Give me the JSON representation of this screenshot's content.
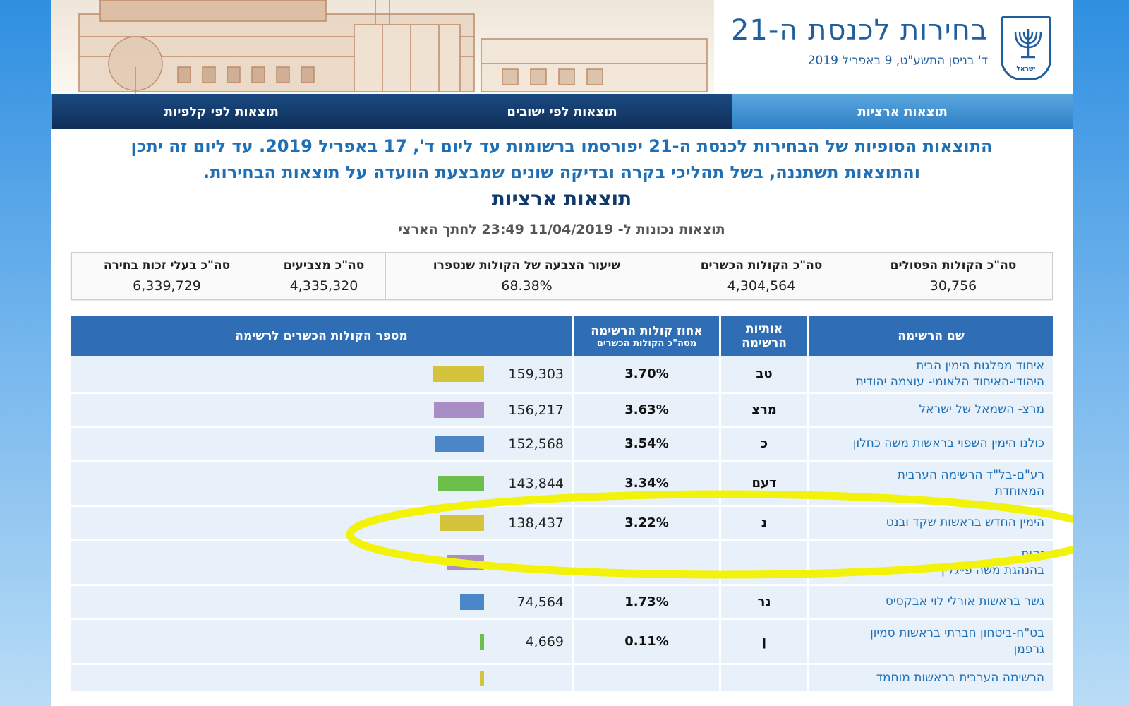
{
  "header": {
    "title": "בחירות לכנסת ה-21",
    "date": "ד' בניסן התשע\"ט, 9 באפריל 2019",
    "emblem_text": "ישראל"
  },
  "tabs": [
    {
      "label": "תוצאות ארציות",
      "active": true
    },
    {
      "label": "תוצאות לפי ישובים",
      "active": false
    },
    {
      "label": "תוצאות לפי קלפיות",
      "active": false
    }
  ],
  "notice": {
    "line1": "התוצאות הסופיות של הבחירות לכנסת ה-21 יפורסמו ברשומות עד ליום ד', 17 באפריל 2019. עד ליום זה יתכן",
    "line2": "והתוצאות תשתננה, בשל תהליכי בקרה ובדיקה שונים שמבצעת הוועדה על תוצאות הבחירות."
  },
  "section_title": "תוצאות ארציות",
  "as_of": "תוצאות נכונות ל- 11/04/2019 23:49 לחתך הארצי",
  "summary": [
    {
      "label": "סה\"כ בעלי זכות בחירה",
      "value": "6,339,729"
    },
    {
      "label": "סה\"כ מצביעים",
      "value": "4,335,320"
    },
    {
      "label": "שיעור הצבעה של הקולות שנספרו",
      "value": "68.38%"
    },
    {
      "label": "סה\"כ הקולות הכשרים",
      "value": "4,304,564"
    },
    {
      "label": "סה\"כ הקולות הפסולים",
      "value": "30,756"
    }
  ],
  "table": {
    "headers": {
      "name": "שם הרשימה",
      "letters_line1": "אותיות",
      "letters_line2": "הרשימה",
      "pct_line1": "אחוז קולות הרשימה",
      "pct_line2": "מסה\"כ הקולות הכשרים",
      "votes": "מספר הקולות הכשרים לרשימה"
    },
    "rows": [
      {
        "name_line1": "איחוד מפלגות הימין הבית",
        "name_line2": "היהודי-האיחוד הלאומי- עוצמה יהודית",
        "letters": "טב",
        "pct": "3.70%",
        "votes": "159,303",
        "bar_value": 159303,
        "bar_color": "#d4c43c"
      },
      {
        "name_line1": "מרצ- השמאל של ישראל",
        "name_line2": "",
        "letters": "מרצ",
        "pct": "3.63%",
        "votes": "156,217",
        "bar_value": 156217,
        "bar_color": "#a88ec4"
      },
      {
        "name_line1": "כולנו הימין השפוי בראשות משה כחלון",
        "name_line2": "",
        "letters": "כ",
        "pct": "3.54%",
        "votes": "152,568",
        "bar_value": 152568,
        "bar_color": "#4a86c8"
      },
      {
        "name_line1": "רע\"ם-בל\"ד הרשימה הערבית",
        "name_line2": "המאוחדת",
        "letters": "דעם",
        "pct": "3.34%",
        "votes": "143,844",
        "bar_value": 143844,
        "bar_color": "#6cbf4a"
      },
      {
        "name_line1": "הימין החדש בראשות שקד ובנט",
        "name_line2": "",
        "letters": "נ",
        "pct": "3.22%",
        "votes": "138,437",
        "bar_value": 138437,
        "bar_color": "#d4c43c"
      },
      {
        "name_line1": "זהות",
        "name_line2": "בהנהגת משה פייגלין",
        "letters": "",
        "pct": "",
        "votes": "",
        "bar_value": 117587,
        "bar_color": "#a88ec4"
      },
      {
        "name_line1": "גשר בראשות אורלי לוי אבקסיס",
        "name_line2": "",
        "letters": "נר",
        "pct": "1.73%",
        "votes": "74,564",
        "bar_value": 74564,
        "bar_color": "#4a86c8"
      },
      {
        "name_line1": "בט\"ח-ביטחון חברתי בראשות סמיון",
        "name_line2": "גרפמן",
        "letters": "ן",
        "pct": "0.11%",
        "votes": "4,669",
        "bar_value": 4669,
        "bar_color": "#6cbf4a"
      },
      {
        "name_line1": "הרשימה הערבית בראשות מוחמד",
        "name_line2": "",
        "letters": "",
        "pct": "",
        "votes": "",
        "bar_value": 4238,
        "bar_color": "#d4c43c"
      }
    ]
  },
  "colors": {
    "accent_blue": "#1f6fb5",
    "header_blue": "#2f6db5",
    "highlight_yellow": "#f2f20a"
  }
}
